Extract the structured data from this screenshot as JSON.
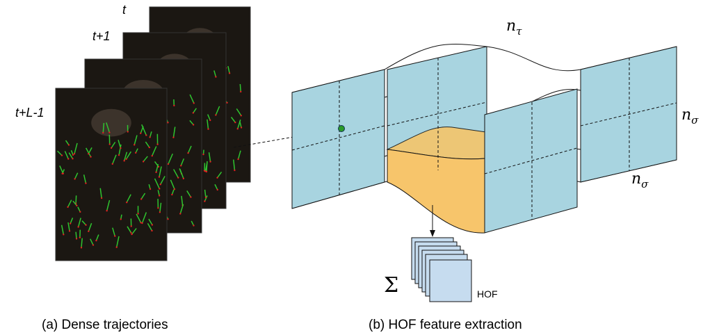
{
  "frames": {
    "labels": [
      "t",
      "t+1",
      "t+L-1"
    ]
  },
  "volume": {
    "n_tau": {
      "base": "n",
      "sub": "τ"
    },
    "n_sigma_right": {
      "base": "n",
      "sub": "σ"
    },
    "n_sigma_bottom": {
      "base": "n",
      "sub": "σ"
    }
  },
  "output": {
    "sum": "Σ",
    "label": "HOF"
  },
  "captions": {
    "a": "(a) Dense trajectories",
    "b": "(b) HOF feature extraction"
  }
}
